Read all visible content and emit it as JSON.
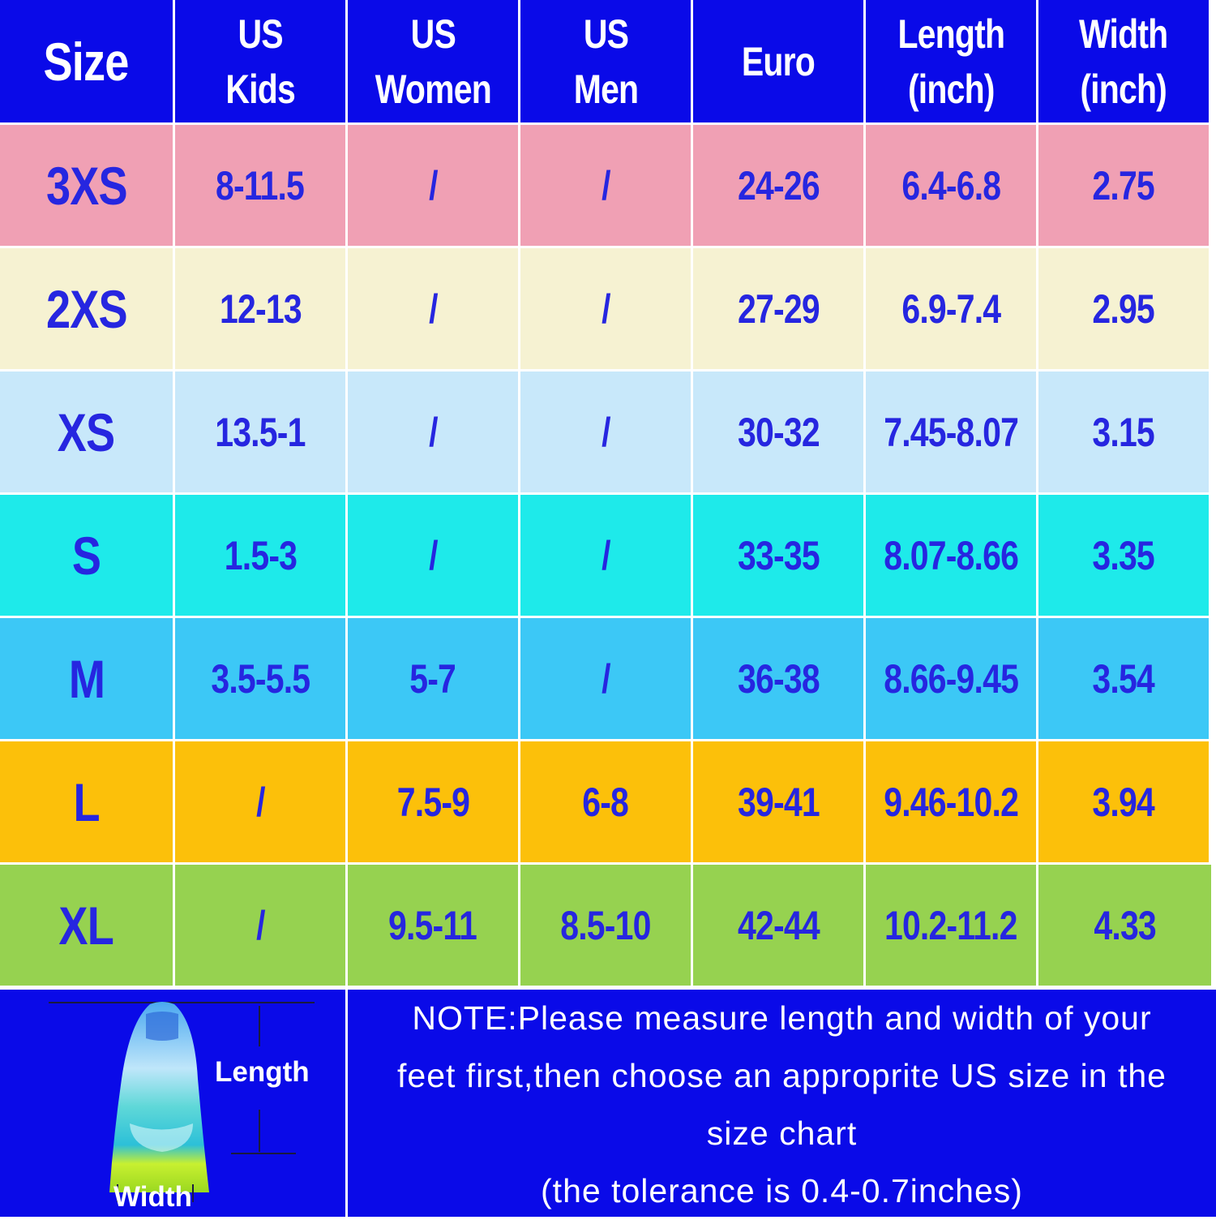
{
  "colors": {
    "header_bg": "#0a0ae8",
    "text": "#2626e0",
    "rows": [
      "#f0a0b4",
      "#f6f2d2",
      "#c8e8fa",
      "#1eeaea",
      "#3cc8f6",
      "#fcc00a",
      "#96d250"
    ]
  },
  "header": [
    "Size",
    "US\nKids",
    "US\nWomen",
    "US\nMen",
    "Euro",
    "Length\n(inch)",
    "Width\n(inch)"
  ],
  "rows": [
    [
      "3XS",
      "8-11.5",
      "/",
      "/",
      "24-26",
      "6.4-6.8",
      "2.75"
    ],
    [
      "2XS",
      "12-13",
      "/",
      "/",
      "27-29",
      "6.9-7.4",
      "2.95"
    ],
    [
      "XS",
      "13.5-1",
      "/",
      "/",
      "30-32",
      "7.45-8.07",
      "3.15"
    ],
    [
      "S",
      "1.5-3",
      "/",
      "/",
      "33-35",
      "8.07-8.66",
      "3.35"
    ],
    [
      "M",
      "3.5-5.5",
      "5-7",
      "/",
      "36-38",
      "8.66-9.45",
      "3.54"
    ],
    [
      "L",
      "/",
      "7.5-9",
      "6-8",
      "39-41",
      "9.46-10.2",
      "3.94"
    ],
    [
      "XL",
      "/",
      "9.5-11",
      "8.5-10",
      "42-44",
      "10.2-11.2",
      "4.33"
    ]
  ],
  "diagram": {
    "length_label": "Length",
    "width_label": "Width",
    "icon": "swim-fin-icon"
  },
  "note": {
    "lines": [
      "NOTE:Please measure length and width of your",
      "feet first,then choose an approprite US size in the",
      "size chart",
      "(the tolerance is 0.4-0.7inches)"
    ]
  }
}
